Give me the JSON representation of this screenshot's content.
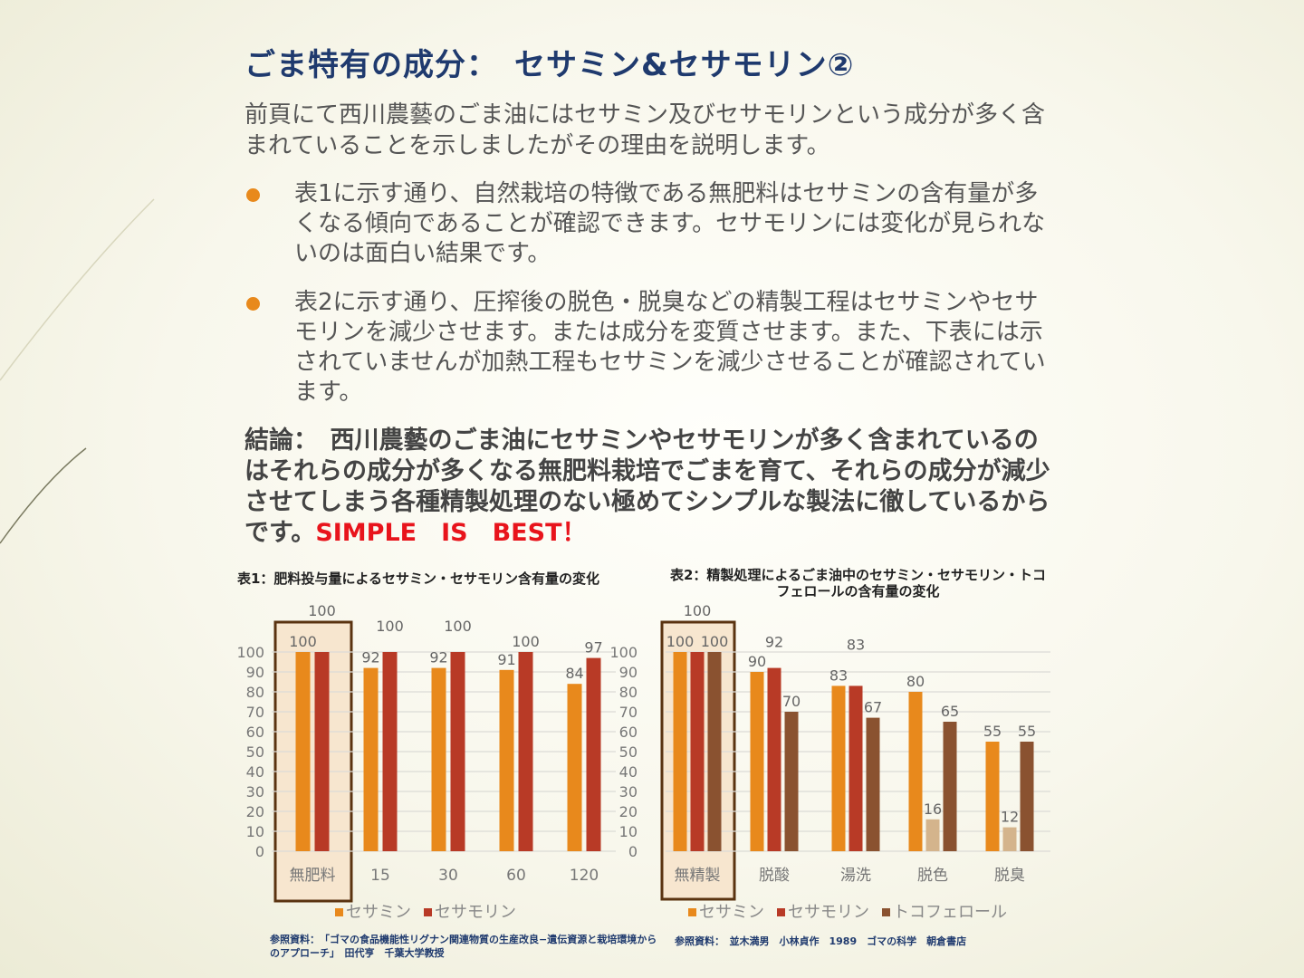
{
  "title": "ごま特有の成分：　セサミン&セサモリン②",
  "intro": "前頁にて西川農藝のごま油にはセサミン及びセサモリンという成分が多く含まれていることを示しましたがその理由を説明します。",
  "bullets": [
    "表1に示す通り、自然栽培の特徴である無肥料はセサミンの含有量が多くなる傾向であることが確認できます。セサモリンには変化が見られないのは面白い結果です。",
    "表2に示す通り、圧搾後の脱色・脱臭などの精製工程はセサミンやセサモリンを減少させます。または成分を変質させます。また、下表には示されていませんが加熱工程もセサミンを減少させることが確認されています。"
  ],
  "conclusion": "結論：　西川農藝のごま油にセサミンやセサモリンが多く含まれているのはそれらの成分が多くなる無肥料栽培でごまを育て、それらの成分が減少させてしまう各種精製処理のない極めてシンプルな製法に徹しているからです。",
  "slogan": "SIMPLE　IS　BEST！",
  "colors": {
    "sesamin": "#e8891c",
    "sesamolin": "#b83a26",
    "sesamolin_light": "#d4b48c",
    "tocopherol": "#8a5230",
    "title": "#1f3a6e"
  },
  "chart_data": [
    {
      "type": "bar",
      "title": "表1：肥料投与量によるセサミン・セサモリン含有量の変化",
      "categories": [
        "無肥料",
        "15",
        "30",
        "60",
        "120"
      ],
      "series": [
        {
          "name": "セサミン",
          "values": [
            100,
            92,
            92,
            91,
            84
          ]
        },
        {
          "name": "セサモリン",
          "values": [
            100,
            100,
            100,
            100,
            97
          ]
        }
      ],
      "ylim": [
        0,
        100
      ],
      "yticks": [
        0,
        10,
        20,
        30,
        40,
        50,
        60,
        70,
        80,
        90,
        100
      ],
      "highlight": "無肥料",
      "legend": "bottom",
      "reference": "参照資料：　「ゴマの食品機能性リグナン関連物質の生産改良−遺伝資源と栽培環境からのアプローチ」　田代亨　千葉大学教授"
    },
    {
      "type": "bar",
      "title": "表2：精製処理によるごま油中のセサミン・セサモリン・トコフェロールの含有量の変化",
      "categories": [
        "無精製",
        "脱酸",
        "湯洗",
        "脱色",
        "脱臭"
      ],
      "series": [
        {
          "name": "セサミン",
          "values": [
            100,
            90,
            83,
            80,
            55
          ]
        },
        {
          "name": "セサモリン",
          "values": [
            100,
            92,
            83,
            16,
            12
          ]
        },
        {
          "name": "トコフェロール",
          "values": [
            100,
            70,
            67,
            65,
            55
          ]
        }
      ],
      "ylim": [
        0,
        100
      ],
      "highlight": "無精製",
      "legend": "bottom",
      "reference": "参照資料：　並木満男　小林貞作　1989　ゴマの科学　朝倉書店"
    }
  ]
}
